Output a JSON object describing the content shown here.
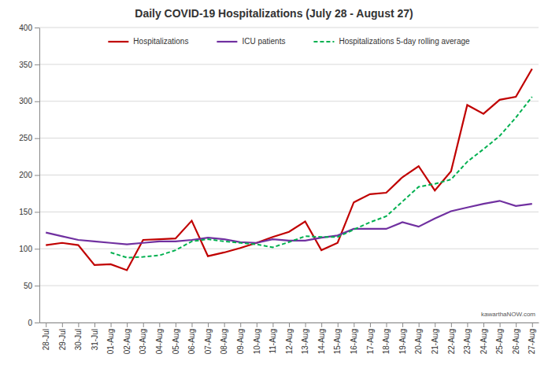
{
  "chart_data": {
    "type": "line",
    "title": "Daily COVID-19 Hospitalizations (July 28 - August 27)",
    "annotations": [
      "kawarthaNOW.com"
    ],
    "categories": [
      "28-Jul",
      "29-Jul",
      "30-Jul",
      "31-Jul",
      "01-Aug",
      "02-Aug",
      "03-Aug",
      "04-Aug",
      "05-Aug",
      "06-Aug",
      "07-Aug",
      "08-Aug",
      "09-Aug",
      "10-Aug",
      "11-Aug",
      "12-Aug",
      "13-Aug",
      "14-Aug",
      "15-Aug",
      "16-Aug",
      "17-Aug",
      "18-Aug",
      "19-Aug",
      "20-Aug",
      "21-Aug",
      "22-Aug",
      "23-Aug",
      "24-Aug",
      "25-Aug",
      "26-Aug",
      "27-Aug"
    ],
    "series": [
      {
        "name": "Hospitalizations",
        "color": "#c00000",
        "line_style": "solid",
        "values": [
          105,
          108,
          105,
          78,
          79,
          71,
          112,
          113,
          114,
          138,
          90,
          95,
          101,
          108,
          116,
          123,
          137,
          98,
          108,
          163,
          174,
          176,
          197,
          212,
          179,
          205,
          295,
          283,
          302,
          306,
          344
        ]
      },
      {
        "name": "ICU patients",
        "color": "#7030a0",
        "line_style": "solid",
        "values": [
          122,
          117,
          112,
          110,
          108,
          106,
          108,
          110,
          110,
          112,
          115,
          113,
          109,
          108,
          113,
          111,
          111,
          115,
          118,
          127,
          127,
          127,
          136,
          130,
          141,
          151,
          156,
          161,
          165,
          158,
          161
        ]
      },
      {
        "name": "Hospitalizations 5-day rolling average",
        "color": "#00b050",
        "line_style": "dashed",
        "values": [
          null,
          null,
          null,
          null,
          95,
          88,
          89,
          91,
          98,
          110,
          113,
          110,
          108,
          106,
          102,
          109,
          117,
          116,
          116,
          126,
          136,
          144,
          164,
          184,
          188,
          194,
          218,
          235,
          253,
          278,
          306
        ]
      }
    ],
    "ylim": [
      0,
      400
    ],
    "yticks": [
      0,
      50,
      100,
      150,
      200,
      250,
      300,
      350,
      400
    ],
    "grid": true,
    "legend": "top"
  }
}
